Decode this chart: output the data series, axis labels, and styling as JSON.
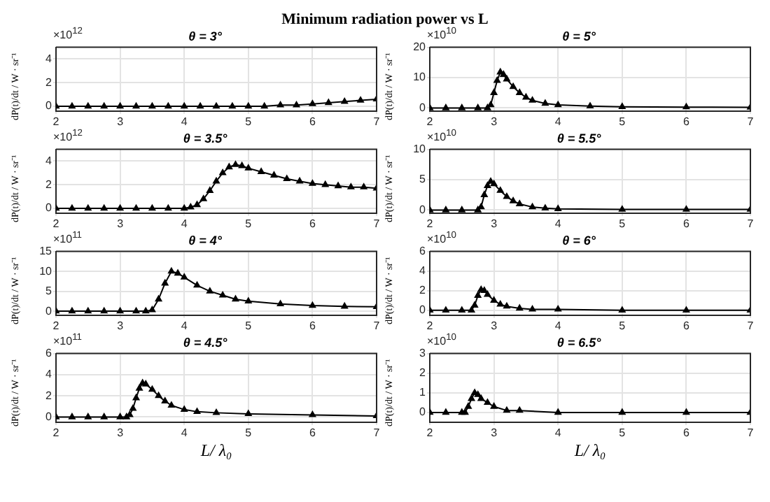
{
  "chart_data": [
    {
      "type": "line",
      "title": "Minimum radiation power vs  L",
      "subtitle": "θ = 3°",
      "ylabel": "dP(t)/dt / W · sr⁻¹",
      "annotations": [
        "×10$^{12}$"
      ],
      "color": "#000000",
      "marker": "triangle",
      "grid": true,
      "xlim": [
        2,
        7
      ],
      "xticks": [
        2,
        3,
        4,
        5,
        6,
        7
      ],
      "ylim": [
        -0.4,
        5
      ],
      "yticks": [
        0,
        2,
        4
      ],
      "x": [
        2,
        2.25,
        2.5,
        2.75,
        3,
        3.25,
        3.5,
        3.75,
        4,
        4.25,
        4.5,
        4.75,
        5,
        5.25,
        5.5,
        5.75,
        6,
        6.25,
        6.5,
        6.75,
        7
      ],
      "values": [
        0,
        0,
        0,
        0,
        0,
        0,
        0,
        0,
        0,
        0,
        0,
        0,
        0,
        0,
        0.1,
        0.1,
        0.2,
        0.3,
        0.4,
        0.5,
        0.6
      ]
    },
    {
      "type": "line",
      "title": "θ = 5°",
      "ylabel": "dP(t)/dt / W · sr⁻¹",
      "annotations": [
        "×10$^{10}$"
      ],
      "color": "#000000",
      "marker": "triangle",
      "grid": true,
      "xlim": [
        2,
        7
      ],
      "xticks": [
        2,
        3,
        4,
        5,
        6,
        7
      ],
      "ylim": [
        -1,
        20
      ],
      "yticks": [
        0,
        10,
        20
      ],
      "x": [
        2,
        2.25,
        2.5,
        2.75,
        2.9,
        2.95,
        3,
        3.05,
        3.1,
        3.15,
        3.2,
        3.3,
        3.4,
        3.5,
        3.6,
        3.8,
        4,
        4.5,
        5,
        6,
        7
      ],
      "values": [
        0,
        0,
        0,
        0,
        0,
        1,
        5,
        9,
        11.8,
        11,
        9.5,
        7,
        5,
        3.5,
        2.5,
        1.5,
        1,
        0.6,
        0.4,
        0.3,
        0.2
      ]
    },
    {
      "type": "line",
      "title": "θ = 3.5°",
      "ylabel": "dP(t)/dt / W · sr⁻¹",
      "annotations": [
        "×10$^{12}$"
      ],
      "color": "#000000",
      "marker": "triangle",
      "grid": true,
      "xlim": [
        2,
        7
      ],
      "xticks": [
        2,
        3,
        4,
        5,
        6,
        7
      ],
      "ylim": [
        -0.4,
        5
      ],
      "yticks": [
        0,
        2,
        4
      ],
      "x": [
        2,
        2.25,
        2.5,
        2.75,
        3,
        3.25,
        3.5,
        3.75,
        4,
        4.1,
        4.2,
        4.3,
        4.4,
        4.5,
        4.6,
        4.7,
        4.8,
        4.9,
        5,
        5.2,
        5.4,
        5.6,
        5.8,
        6,
        6.2,
        6.4,
        6.6,
        6.8,
        7
      ],
      "values": [
        0,
        0,
        0,
        0,
        0,
        0,
        0,
        0,
        0,
        0.1,
        0.3,
        0.8,
        1.5,
        2.3,
        3,
        3.5,
        3.7,
        3.6,
        3.4,
        3.1,
        2.8,
        2.5,
        2.3,
        2.1,
        2,
        1.9,
        1.8,
        1.8,
        1.7
      ]
    },
    {
      "type": "line",
      "title": "θ = 5.5°",
      "ylabel": "dP(t)/dt / W · sr⁻¹",
      "annotations": [
        "×10$^{10}$"
      ],
      "color": "#000000",
      "marker": "triangle",
      "grid": true,
      "xlim": [
        2,
        7
      ],
      "xticks": [
        2,
        3,
        4,
        5,
        6,
        7
      ],
      "ylim": [
        -0.5,
        10
      ],
      "yticks": [
        0,
        5,
        10
      ],
      "x": [
        2,
        2.25,
        2.5,
        2.75,
        2.8,
        2.85,
        2.9,
        2.95,
        3,
        3.1,
        3.2,
        3.3,
        3.4,
        3.6,
        3.8,
        4,
        5,
        6,
        7
      ],
      "values": [
        0,
        0,
        0,
        0,
        0.5,
        2.5,
        4,
        4.7,
        4.3,
        3.2,
        2.2,
        1.5,
        1,
        0.5,
        0.3,
        0.2,
        0.1,
        0.1,
        0.1
      ]
    },
    {
      "type": "line",
      "title": "θ = 4°",
      "ylabel": "dP(t)/dt / W · sr⁻¹",
      "annotations": [
        "×10$^{11}$"
      ],
      "color": "#000000",
      "marker": "triangle",
      "grid": true,
      "xlim": [
        2,
        7
      ],
      "xticks": [
        2,
        3,
        4,
        5,
        6,
        7
      ],
      "ylim": [
        -1,
        15
      ],
      "yticks": [
        0,
        5,
        10,
        15
      ],
      "x": [
        2,
        2.25,
        2.5,
        2.75,
        3,
        3.25,
        3.4,
        3.5,
        3.6,
        3.7,
        3.8,
        3.9,
        4,
        4.2,
        4.4,
        4.6,
        4.8,
        5,
        5.5,
        6,
        6.5,
        7
      ],
      "values": [
        0,
        0,
        0,
        0,
        0,
        0,
        0,
        0.3,
        3,
        7,
        10,
        9.5,
        8.5,
        6.5,
        5,
        4,
        3,
        2.5,
        1.8,
        1.4,
        1.2,
        1.1
      ]
    },
    {
      "type": "line",
      "title": "θ = 6°",
      "ylabel": "dP(t)/dt / W · sr⁻¹",
      "annotations": [
        "×10$^{10}$"
      ],
      "color": "#000000",
      "marker": "triangle",
      "grid": true,
      "xlim": [
        2,
        7
      ],
      "xticks": [
        2,
        3,
        4,
        5,
        6,
        7
      ],
      "ylim": [
        -0.5,
        6
      ],
      "yticks": [
        0,
        2,
        4,
        6
      ],
      "x": [
        2,
        2.25,
        2.5,
        2.65,
        2.7,
        2.75,
        2.8,
        2.85,
        2.9,
        3,
        3.1,
        3.2,
        3.4,
        3.6,
        4,
        5,
        6,
        7
      ],
      "values": [
        0,
        0,
        0,
        0,
        0.5,
        1.5,
        2.1,
        2,
        1.6,
        1,
        0.6,
        0.4,
        0.2,
        0.1,
        0.1,
        0,
        0,
        0
      ]
    },
    {
      "type": "line",
      "title": "θ = 4.5°",
      "xlabel": "L/ λ₀",
      "ylabel": "dP(t)/dt / W · sr⁻¹",
      "annotations": [
        "×10$^{11}$"
      ],
      "color": "#000000",
      "marker": "triangle",
      "grid": true,
      "xlim": [
        2,
        7
      ],
      "xticks": [
        2,
        3,
        4,
        5,
        6,
        7
      ],
      "ylim": [
        -0.5,
        6
      ],
      "yticks": [
        0,
        2,
        4,
        6
      ],
      "x": [
        2,
        2.25,
        2.5,
        2.75,
        3,
        3.1,
        3.15,
        3.2,
        3.25,
        3.3,
        3.35,
        3.4,
        3.5,
        3.6,
        3.7,
        3.8,
        4,
        4.2,
        4.5,
        5,
        6,
        7
      ],
      "values": [
        0,
        0,
        0,
        0,
        0,
        0,
        0.2,
        0.8,
        1.8,
        2.7,
        3.2,
        3.1,
        2.6,
        2,
        1.5,
        1.1,
        0.7,
        0.5,
        0.4,
        0.3,
        0.2,
        0.1
      ]
    },
    {
      "type": "line",
      "title": "θ = 6.5°",
      "xlabel": "L/ λ₀",
      "ylabel": "dP(t)/dt / W · sr⁻¹",
      "annotations": [
        "×10$^{10}$"
      ],
      "color": "#000000",
      "marker": "triangle",
      "grid": true,
      "xlim": [
        2,
        7
      ],
      "xticks": [
        2,
        3,
        4,
        5,
        6,
        7
      ],
      "ylim": [
        -0.5,
        3
      ],
      "yticks": [
        0,
        1,
        2,
        3
      ],
      "x": [
        2,
        2.25,
        2.5,
        2.55,
        2.6,
        2.65,
        2.7,
        2.75,
        2.8,
        2.9,
        3,
        3.2,
        3.4,
        4,
        5,
        6,
        7
      ],
      "values": [
        0,
        0,
        0,
        0,
        0.3,
        0.7,
        1,
        0.9,
        0.7,
        0.5,
        0.3,
        0.1,
        0.1,
        0,
        0,
        0,
        0
      ]
    }
  ]
}
